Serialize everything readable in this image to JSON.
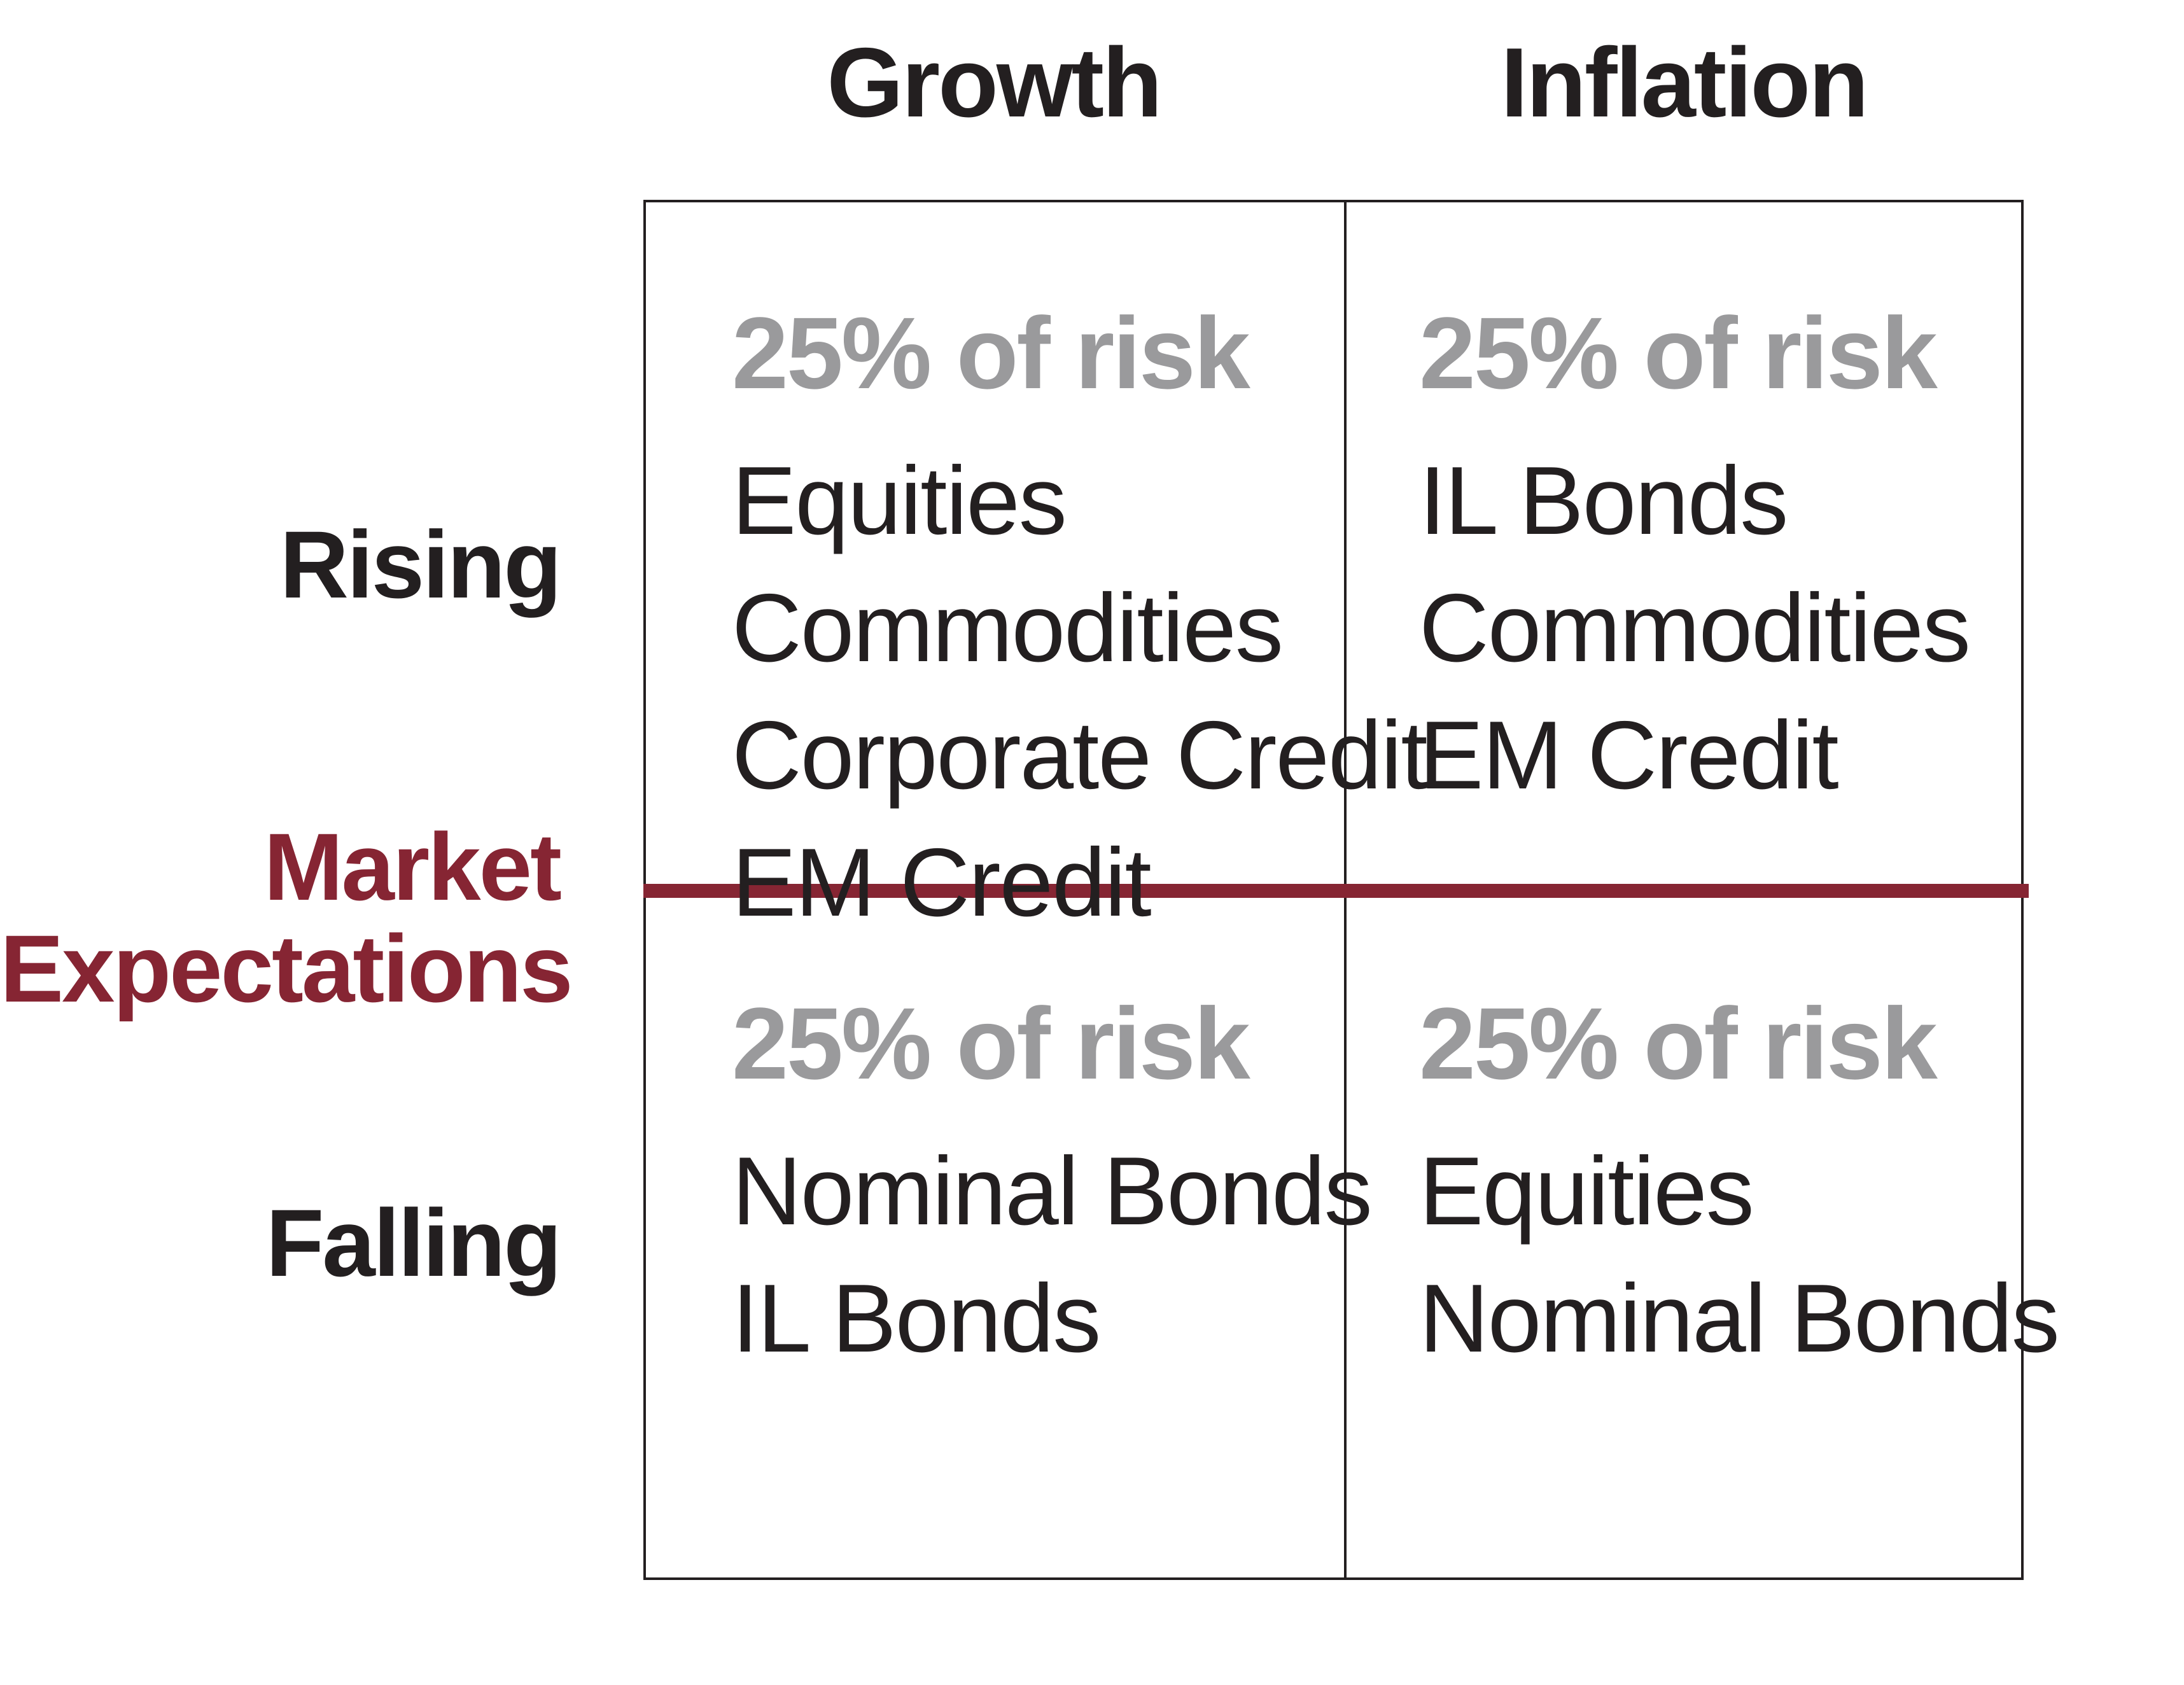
{
  "matrix": {
    "columns": [
      {
        "label": "Growth"
      },
      {
        "label": "Inflation"
      }
    ],
    "rows": [
      {
        "label": "Rising"
      },
      {
        "label": "Falling"
      }
    ],
    "axis_label": {
      "line1": "Market",
      "line2": "Expectations"
    },
    "quadrants": [
      {
        "id": "rising-growth",
        "risk_share": "25% of risk",
        "assets": [
          "Equities",
          "Commodities",
          "Corporate Credit",
          "EM Credit"
        ]
      },
      {
        "id": "rising-inflation",
        "risk_share": "25% of risk",
        "assets": [
          "IL Bonds",
          "Commodities",
          "EM Credit"
        ]
      },
      {
        "id": "falling-growth",
        "risk_share": "25% of risk",
        "assets": [
          "Nominal Bonds",
          "IL Bonds"
        ]
      },
      {
        "id": "falling-inflation",
        "risk_share": "25% of risk",
        "assets": [
          "Equities",
          "Nominal Bonds"
        ]
      }
    ],
    "colors": {
      "accent_maroon": "#862533",
      "risk_gray": "#9a9a9c",
      "text_black": "#231f20",
      "background": "#ffffff"
    }
  }
}
